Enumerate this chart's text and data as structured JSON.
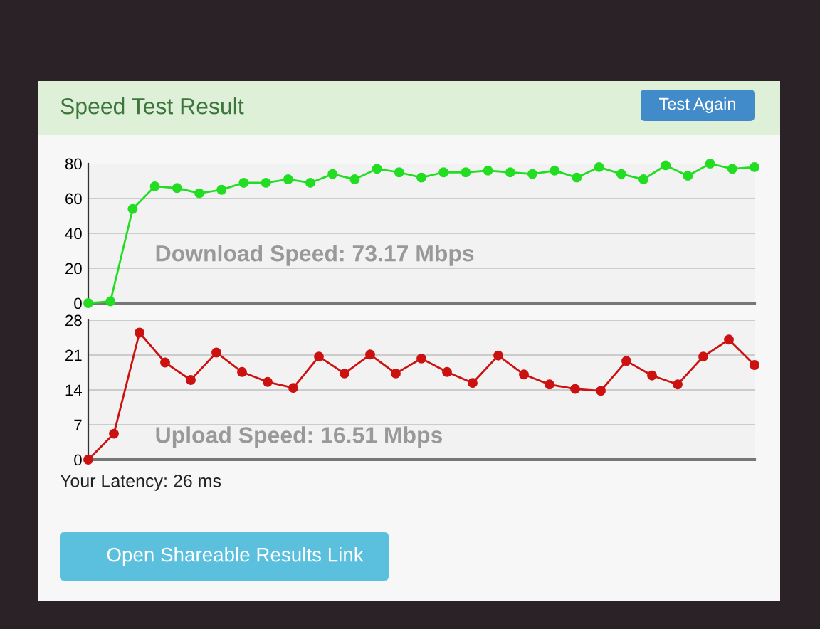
{
  "chart_data": [
    {
      "type": "line",
      "title": "Speed Test Result",
      "annotations": [
        "Download Speed: 73.17 Mbps",
        "Test Again"
      ],
      "categories": [
        null,
        null,
        null,
        null,
        null,
        null,
        null,
        null,
        null,
        null,
        null,
        null,
        null,
        null,
        null,
        null,
        null,
        null,
        null,
        null,
        null,
        null,
        null,
        null,
        null,
        null,
        null,
        null,
        null,
        null,
        null
      ],
      "ylim": [
        0,
        80
      ],
      "yticks": [
        0,
        20,
        40,
        60,
        80
      ],
      "grid": "y",
      "tick_labels": "y",
      "marker": "circle",
      "line_style": "solid",
      "series": [
        {
          "color": "#22dd22",
          "values": [
            0,
            1,
            54,
            67,
            66,
            63,
            65,
            69,
            69,
            71,
            69,
            74,
            71,
            77,
            75,
            72,
            75,
            75,
            76,
            75,
            74,
            76,
            72,
            78,
            74,
            71,
            79,
            73,
            80,
            77,
            78
          ]
        }
      ]
    },
    {
      "type": "line",
      "annotations": [
        "Upload Speed: 16.51 Mbps",
        "Your Latency: 26 ms",
        "Open Shareable Results Link"
      ],
      "categories": [
        null,
        null,
        null,
        null,
        null,
        null,
        null,
        null,
        null,
        null,
        null,
        null,
        null,
        null,
        null,
        null,
        null,
        null,
        null,
        null,
        null,
        null,
        null,
        null,
        null,
        null,
        null
      ],
      "ylim": [
        0,
        28
      ],
      "yticks": [
        0,
        7,
        14,
        21,
        28
      ],
      "grid": "y",
      "tick_labels": "y",
      "marker": "circle",
      "line_style": "solid",
      "series": [
        {
          "color": "#cc1111",
          "values": [
            0,
            5.2,
            25.5,
            19.5,
            16.0,
            21.5,
            17.6,
            15.6,
            14.4,
            20.7,
            17.3,
            21.1,
            17.3,
            20.3,
            17.6,
            15.4,
            20.9,
            17.1,
            15.1,
            14.2,
            13.8,
            19.8,
            16.9,
            15.1,
            20.7,
            24.1,
            19.0
          ]
        }
      ]
    }
  ]
}
